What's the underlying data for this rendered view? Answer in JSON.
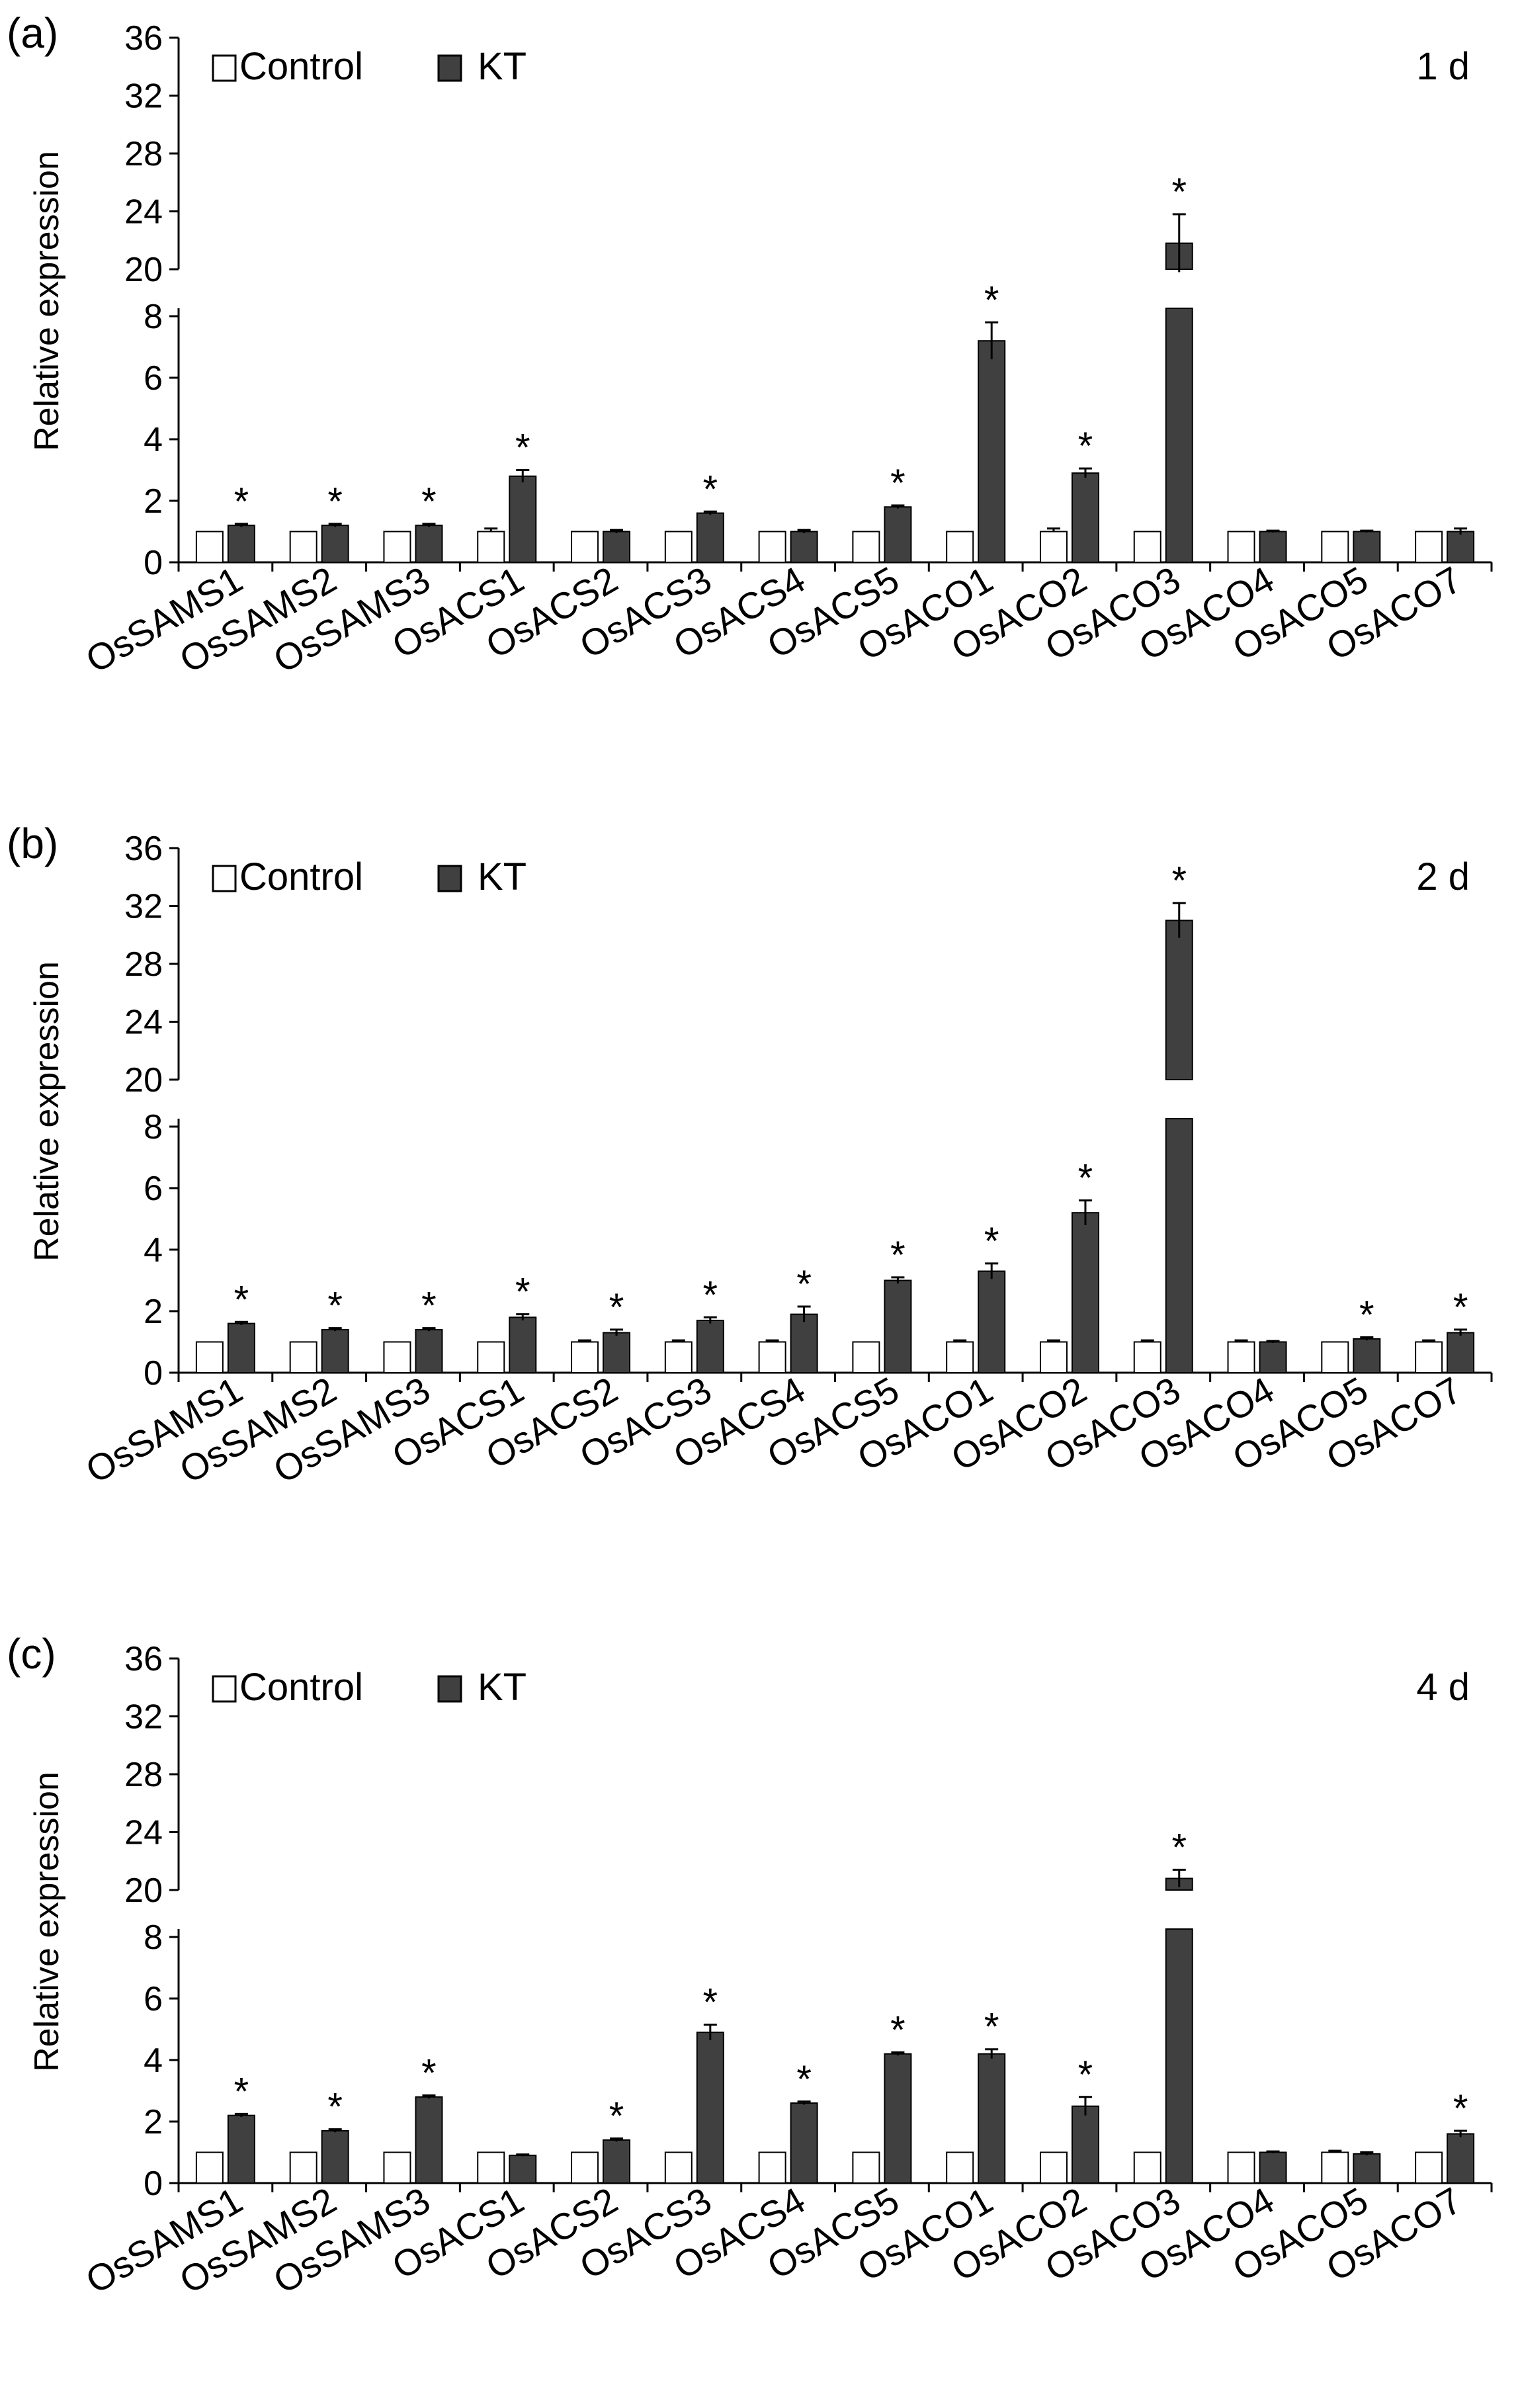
{
  "figure": {
    "series_names": [
      "Control",
      "KT"
    ],
    "colors": {
      "control": "#ffffff",
      "kt": "#404040",
      "axis": "#000000"
    }
  },
  "chart_data": [
    {
      "type": "bar",
      "panel_label": "(a)",
      "day_label": "1 d",
      "ylabel": "Relative  expression",
      "axis_break": {
        "lower_range": [
          0,
          8
        ],
        "upper_range": [
          20,
          36
        ]
      },
      "yticks_lower": [
        "0",
        "2",
        "4",
        "6",
        "8"
      ],
      "yticks_upper": [
        "20",
        "24",
        "28",
        "32",
        "36"
      ],
      "categories": [
        "OsSAMS1",
        "OsSAMS2",
        "OsSAMS3",
        "OsACS1",
        "OsACS2",
        "OsACS3",
        "OsACS4",
        "OsACS5",
        "OsACO1",
        "OsACO2",
        "OsACO3",
        "OsACO4",
        "OsACO5",
        "OsACO7"
      ],
      "series": [
        {
          "name": "Control",
          "values": [
            1,
            1,
            1,
            1,
            1,
            1,
            1,
            1,
            1,
            1,
            1,
            1,
            1,
            1
          ],
          "errors": [
            0,
            0,
            0,
            0.1,
            0,
            0,
            0,
            0,
            0,
            0.1,
            0,
            0,
            0,
            0
          ]
        },
        {
          "name": "KT",
          "values": [
            1.2,
            1.2,
            1.2,
            2.8,
            1.0,
            1.6,
            1.0,
            1.8,
            7.2,
            2.9,
            21.8,
            1.0,
            1.0,
            1.0
          ],
          "errors": [
            0.05,
            0.05,
            0.05,
            0.2,
            0.05,
            0.05,
            0.05,
            0.05,
            0.6,
            0.15,
            2.0,
            0.03,
            0.03,
            0.1
          ]
        }
      ],
      "significant": [
        true,
        true,
        true,
        true,
        false,
        true,
        false,
        true,
        true,
        true,
        true,
        false,
        false,
        false
      ],
      "significance_marker": "*"
    },
    {
      "type": "bar",
      "panel_label": "(b)",
      "day_label": "2 d",
      "ylabel": "Relative  expression",
      "axis_break": {
        "lower_range": [
          0,
          8
        ],
        "upper_range": [
          20,
          36
        ]
      },
      "yticks_lower": [
        "0",
        "2",
        "4",
        "6",
        "8"
      ],
      "yticks_upper": [
        "20",
        "24",
        "28",
        "32",
        "36"
      ],
      "categories": [
        "OsSAMS1",
        "OsSAMS2",
        "OsSAMS3",
        "OsACS1",
        "OsACS2",
        "OsACS3",
        "OsACS4",
        "OsACS5",
        "OsACO1",
        "OsACO2",
        "OsACO3",
        "OsACO4",
        "OsACO5",
        "OsACO7"
      ],
      "series": [
        {
          "name": "Control",
          "values": [
            1,
            1,
            1,
            1,
            1,
            1,
            1,
            1,
            1,
            1,
            1,
            1,
            1,
            1
          ],
          "errors": [
            0,
            0,
            0,
            0,
            0.05,
            0.05,
            0.05,
            0,
            0.05,
            0.05,
            0.05,
            0.05,
            0,
            0.05
          ]
        },
        {
          "name": "KT",
          "values": [
            1.6,
            1.4,
            1.4,
            1.8,
            1.3,
            1.7,
            1.9,
            3.0,
            3.3,
            5.2,
            31.0,
            1.0,
            1.1,
            1.3
          ],
          "errors": [
            0.05,
            0.05,
            0.05,
            0.1,
            0.1,
            0.1,
            0.25,
            0.1,
            0.25,
            0.4,
            1.2,
            0.03,
            0.05,
            0.1
          ]
        }
      ],
      "significant": [
        true,
        true,
        true,
        true,
        true,
        true,
        true,
        true,
        true,
        true,
        true,
        false,
        true,
        true
      ],
      "significance_marker": "*"
    },
    {
      "type": "bar",
      "panel_label": "(c)",
      "day_label": "4 d",
      "ylabel": "Relative  expression",
      "axis_break": {
        "lower_range": [
          0,
          8
        ],
        "upper_range": [
          20,
          36
        ]
      },
      "yticks_lower": [
        "0",
        "2",
        "4",
        "6",
        "8"
      ],
      "yticks_upper": [
        "20",
        "24",
        "28",
        "32",
        "36"
      ],
      "categories": [
        "OsSAMS1",
        "OsSAMS2",
        "OsSAMS3",
        "OsACS1",
        "OsACS2",
        "OsACS3",
        "OsACS4",
        "OsACS5",
        "OsACO1",
        "OsACO2",
        "OsACO3",
        "OsACO4",
        "OsACO5",
        "OsACO7"
      ],
      "series": [
        {
          "name": "Control",
          "values": [
            1,
            1,
            1,
            1,
            1,
            1,
            1,
            1,
            1,
            1,
            1,
            1,
            1,
            1
          ],
          "errors": [
            0,
            0,
            0,
            0,
            0,
            0,
            0,
            0,
            0,
            0,
            0,
            0,
            0.05,
            0
          ]
        },
        {
          "name": "KT",
          "values": [
            2.2,
            1.7,
            2.8,
            0.9,
            1.4,
            4.9,
            2.6,
            4.2,
            4.2,
            2.5,
            20.8,
            1.0,
            0.95,
            1.6
          ],
          "errors": [
            0.05,
            0.05,
            0.05,
            0.03,
            0.05,
            0.25,
            0.05,
            0.05,
            0.15,
            0.3,
            0.6,
            0.03,
            0.05,
            0.1
          ]
        }
      ],
      "significant": [
        true,
        true,
        true,
        false,
        true,
        true,
        true,
        true,
        true,
        true,
        true,
        false,
        false,
        true
      ],
      "significance_marker": "*"
    }
  ]
}
